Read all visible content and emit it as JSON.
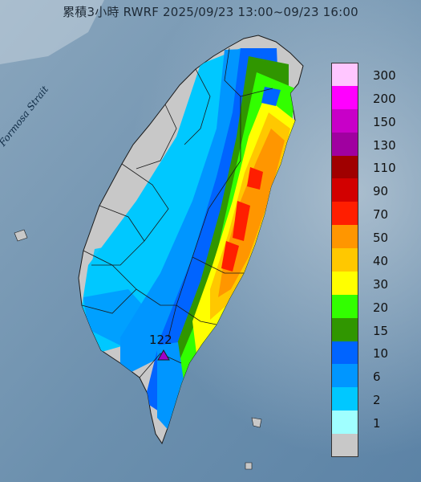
{
  "title": "累積3小時 RWRF 2025/09/23 13:00~09/23 16:00",
  "map_label": "Formosa Strait",
  "max_station_value": "122",
  "legend": [
    {
      "label": "300",
      "color": "#ffc6ff"
    },
    {
      "label": "200",
      "color": "#ff00ff"
    },
    {
      "label": "150",
      "color": "#c800c8"
    },
    {
      "label": "130",
      "color": "#a000a0"
    },
    {
      "label": "110",
      "color": "#a00000"
    },
    {
      "label": "90",
      "color": "#d20000"
    },
    {
      "label": "70",
      "color": "#ff1e00"
    },
    {
      "label": "50",
      "color": "#ff9600"
    },
    {
      "label": "40",
      "color": "#ffc800"
    },
    {
      "label": "30",
      "color": "#ffff00"
    },
    {
      "label": "20",
      "color": "#32ff00"
    },
    {
      "label": "15",
      "color": "#309600"
    },
    {
      "label": "10",
      "color": "#0064ff"
    },
    {
      "label": "6",
      "color": "#0096ff"
    },
    {
      "label": "2",
      "color": "#00c8ff"
    },
    {
      "label": "1",
      "color": "#a0ffff"
    },
    {
      "label": "",
      "color": "#c8c8c8"
    }
  ]
}
